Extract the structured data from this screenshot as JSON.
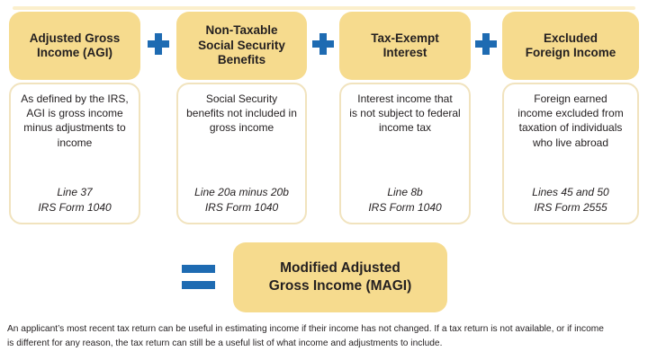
{
  "colors": {
    "tan": "#F6DB8E",
    "blue": "#1E6BB2",
    "box_border": "#F1E3BE",
    "text": "#231F20"
  },
  "diagram": {
    "plus_symbol": "+",
    "equals_symbol": "=",
    "columns": [
      {
        "title_lines": [
          "Adjusted Gross",
          "Income (AGI)"
        ],
        "description_lines": [
          "As defined by the IRS,",
          "AGI is gross income",
          "minus adjustments to",
          "income"
        ],
        "reference_lines": [
          "Line 37",
          "IRS Form 1040"
        ]
      },
      {
        "title_lines": [
          "Non-Taxable",
          "Social Security",
          "Benefits"
        ],
        "description_lines": [
          "Social Security",
          "benefits not included in",
          "gross income"
        ],
        "reference_lines": [
          "Line 20a minus 20b",
          "IRS Form 1040"
        ]
      },
      {
        "title_lines": [
          "Tax-Exempt",
          "Interest"
        ],
        "description_lines": [
          "Interest income that",
          "is not subject to federal",
          "income tax"
        ],
        "reference_lines": [
          "Line 8b",
          "IRS Form 1040"
        ]
      },
      {
        "title_lines": [
          "Excluded",
          "Foreign Income"
        ],
        "description_lines": [
          "Foreign earned",
          "income excluded from",
          "taxation of individuals",
          "who live abroad"
        ],
        "reference_lines": [
          "Lines 45 and 50",
          "IRS Form 2555"
        ]
      }
    ],
    "result_title_lines": [
      "Modified Adjusted",
      "Gross Income (MAGI)"
    ],
    "footnote_lines": [
      "An applicant’s most recent tax return can be useful in estimating income if their income has not changed.  If a tax return is not available, or if income",
      "is different for any reason, the tax return can still be a useful list of what income and adjustments to include."
    ]
  }
}
